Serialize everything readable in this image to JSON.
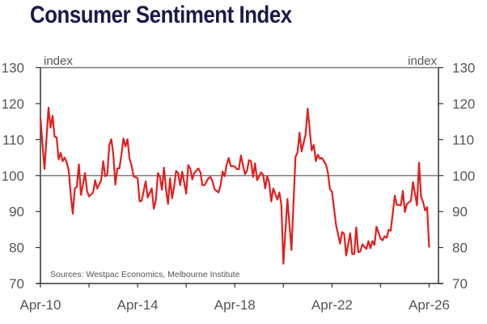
{
  "chart_data": {
    "type": "line",
    "title": "Consumer Sentiment Index",
    "ylabel_left": "index",
    "ylabel_right": "index",
    "source": "Sources: Westpac Economics, Melbourne Institute",
    "ylim": [
      70,
      130
    ],
    "yticks": [
      70,
      80,
      90,
      100,
      110,
      120,
      130
    ],
    "reference_line": 100,
    "xlim": [
      "2010-04",
      "2026-09"
    ],
    "xticks": [
      "2010-04",
      "2012-04",
      "2014-04",
      "2016-04",
      "2018-04",
      "2020-04",
      "2022-04",
      "2024-04",
      "2026-04"
    ],
    "xtick_labels": {
      "2010-04": "Apr-10",
      "2014-04": "Apr-14",
      "2018-04": "Apr-18",
      "2022-04": "Apr-22",
      "2026-04": "Apr-26"
    },
    "grid": false,
    "colors": {
      "line": "#e02020",
      "reference": "#808080",
      "axis": "#333333",
      "title": "#1c1a4a"
    },
    "series": [
      {
        "points": [
          [
            "2010-04",
            116
          ],
          [
            "2010-06",
            101.8
          ],
          [
            "2010-08",
            118.9
          ],
          [
            "2010-09",
            113.3
          ],
          [
            "2010-10",
            116.6
          ],
          [
            "2010-11",
            110.8
          ],
          [
            "2010-12",
            110.6
          ],
          [
            "2011-01",
            104.5
          ],
          [
            "2011-02",
            106.3
          ],
          [
            "2011-03",
            104
          ],
          [
            "2011-04",
            105
          ],
          [
            "2011-05",
            103.6
          ],
          [
            "2011-06",
            101.3
          ],
          [
            "2011-07",
            94.6
          ],
          [
            "2011-08",
            89.4
          ],
          [
            "2011-09",
            96.4
          ],
          [
            "2011-10",
            96.9
          ],
          [
            "2011-11",
            103.1
          ],
          [
            "2011-12",
            94.6
          ],
          [
            "2012-02",
            100.7
          ],
          [
            "2012-03",
            95.7
          ],
          [
            "2012-04",
            94.2
          ],
          [
            "2012-06",
            95.3
          ],
          [
            "2012-07",
            98.7
          ],
          [
            "2012-08",
            96.4
          ],
          [
            "2012-10",
            98.7
          ],
          [
            "2012-11",
            104
          ],
          [
            "2012-12",
            99.8
          ],
          [
            "2013-01",
            100.2
          ],
          [
            "2013-02",
            108.5
          ],
          [
            "2013-03",
            110.1
          ],
          [
            "2013-04",
            105.8
          ],
          [
            "2013-05",
            97.5
          ],
          [
            "2013-06",
            102
          ],
          [
            "2013-07",
            102
          ],
          [
            "2013-08",
            105.8
          ],
          [
            "2013-09",
            110.3
          ],
          [
            "2013-10",
            108.1
          ],
          [
            "2013-11",
            110.1
          ],
          [
            "2013-12",
            104.7
          ],
          [
            "2014-01",
            102.9
          ],
          [
            "2014-02",
            99.8
          ],
          [
            "2014-04",
            99.3
          ],
          [
            "2014-05",
            92.8
          ],
          [
            "2014-06",
            93
          ],
          [
            "2014-08",
            98.4
          ],
          [
            "2014-09",
            93.9
          ],
          [
            "2014-11",
            96.4
          ],
          [
            "2014-12",
            90.8
          ],
          [
            "2015-01",
            93
          ],
          [
            "2015-02",
            100.7
          ],
          [
            "2015-03",
            99.6
          ],
          [
            "2015-04",
            96
          ],
          [
            "2015-05",
            102.2
          ],
          [
            "2015-06",
            96.2
          ],
          [
            "2015-07",
            92.1
          ],
          [
            "2015-08",
            99.3
          ],
          [
            "2015-09",
            93.7
          ],
          [
            "2015-10",
            96.9
          ],
          [
            "2015-11",
            101.3
          ],
          [
            "2015-12",
            100.7
          ],
          [
            "2016-01",
            97.3
          ],
          [
            "2016-02",
            101.1
          ],
          [
            "2016-04",
            95
          ],
          [
            "2016-05",
            102.9
          ],
          [
            "2016-06",
            102
          ],
          [
            "2016-07",
            98.9
          ],
          [
            "2016-08",
            100.7
          ],
          [
            "2016-10",
            102
          ],
          [
            "2016-11",
            100.9
          ],
          [
            "2016-12",
            97.3
          ],
          [
            "2017-01",
            97.3
          ],
          [
            "2017-03",
            99.3
          ],
          [
            "2017-04",
            99.6
          ],
          [
            "2017-05",
            98.4
          ],
          [
            "2017-06",
            96.2
          ],
          [
            "2017-08",
            95.3
          ],
          [
            "2017-09",
            97.3
          ],
          [
            "2017-10",
            101.1
          ],
          [
            "2017-11",
            99.8
          ],
          [
            "2017-12",
            103.1
          ],
          [
            "2018-01",
            104.9
          ],
          [
            "2018-02",
            102.7
          ],
          [
            "2018-04",
            102.5
          ],
          [
            "2018-05",
            101.8
          ],
          [
            "2018-06",
            101.8
          ],
          [
            "2018-07",
            105.6
          ],
          [
            "2018-08",
            102.9
          ],
          [
            "2018-09",
            100.4
          ],
          [
            "2018-10",
            101.3
          ],
          [
            "2018-11",
            104.3
          ],
          [
            "2018-12",
            104
          ],
          [
            "2019-01",
            99.6
          ],
          [
            "2019-02",
            103.4
          ],
          [
            "2019-03",
            98.7
          ],
          [
            "2019-05",
            100.9
          ],
          [
            "2019-06",
            100.2
          ],
          [
            "2019-07",
            96.4
          ],
          [
            "2019-08",
            99.8
          ],
          [
            "2019-09",
            98
          ],
          [
            "2019-10",
            92.8
          ],
          [
            "2019-11",
            96.4
          ],
          [
            "2020-01",
            93.3
          ],
          [
            "2020-02",
            95.3
          ],
          [
            "2020-03",
            91.9
          ],
          [
            "2020-04",
            75.5
          ],
          [
            "2020-06",
            93.5
          ],
          [
            "2020-08",
            79.3
          ],
          [
            "2020-10",
            105.2
          ],
          [
            "2020-11",
            106.5
          ],
          [
            "2020-12",
            111.9
          ],
          [
            "2021-01",
            106.7
          ],
          [
            "2021-03",
            111.5
          ],
          [
            "2021-04",
            118.6
          ],
          [
            "2021-06",
            107
          ],
          [
            "2021-07",
            108.5
          ],
          [
            "2021-08",
            104
          ],
          [
            "2021-09",
            105.8
          ],
          [
            "2021-10",
            104.7
          ],
          [
            "2021-11",
            104.9
          ],
          [
            "2022-01",
            103.1
          ],
          [
            "2022-02",
            100.7
          ],
          [
            "2022-03",
            96.2
          ],
          [
            "2022-04",
            95.5
          ],
          [
            "2022-06",
            86.3
          ],
          [
            "2022-08",
            81.1
          ],
          [
            "2022-09",
            84.3
          ],
          [
            "2022-10",
            83.8
          ],
          [
            "2022-11",
            77.8
          ],
          [
            "2023-01",
            84
          ],
          [
            "2023-02",
            78.2
          ],
          [
            "2023-03",
            78.2
          ],
          [
            "2023-04",
            85.6
          ],
          [
            "2023-05",
            78.7
          ],
          [
            "2023-06",
            78.9
          ],
          [
            "2023-07",
            80.9
          ],
          [
            "2023-09",
            79.6
          ],
          [
            "2023-10",
            81.8
          ],
          [
            "2023-11",
            79.8
          ],
          [
            "2023-12",
            81.8
          ],
          [
            "2024-01",
            80.7
          ],
          [
            "2024-02",
            85.8
          ],
          [
            "2024-04",
            82.5
          ],
          [
            "2024-05",
            82
          ],
          [
            "2024-06",
            83.1
          ],
          [
            "2024-07",
            82.7
          ],
          [
            "2024-08",
            84.9
          ],
          [
            "2024-09",
            84.7
          ],
          [
            "2024-11",
            94.4
          ],
          [
            "2024-12",
            91.9
          ],
          [
            "2025-02",
            91.7
          ],
          [
            "2025-03",
            95.7
          ],
          [
            "2025-04",
            89.9
          ],
          [
            "2025-05",
            92.1
          ],
          [
            "2025-07",
            93
          ],
          [
            "2025-08",
            98.2
          ],
          [
            "2025-10",
            91.7
          ],
          [
            "2025-11",
            103.6
          ],
          [
            "2025-12",
            94.2
          ],
          [
            "2026-01",
            92.6
          ],
          [
            "2026-02",
            90.3
          ],
          [
            "2026-03",
            91.2
          ],
          [
            "2026-04",
            80
          ]
        ]
      }
    ]
  }
}
